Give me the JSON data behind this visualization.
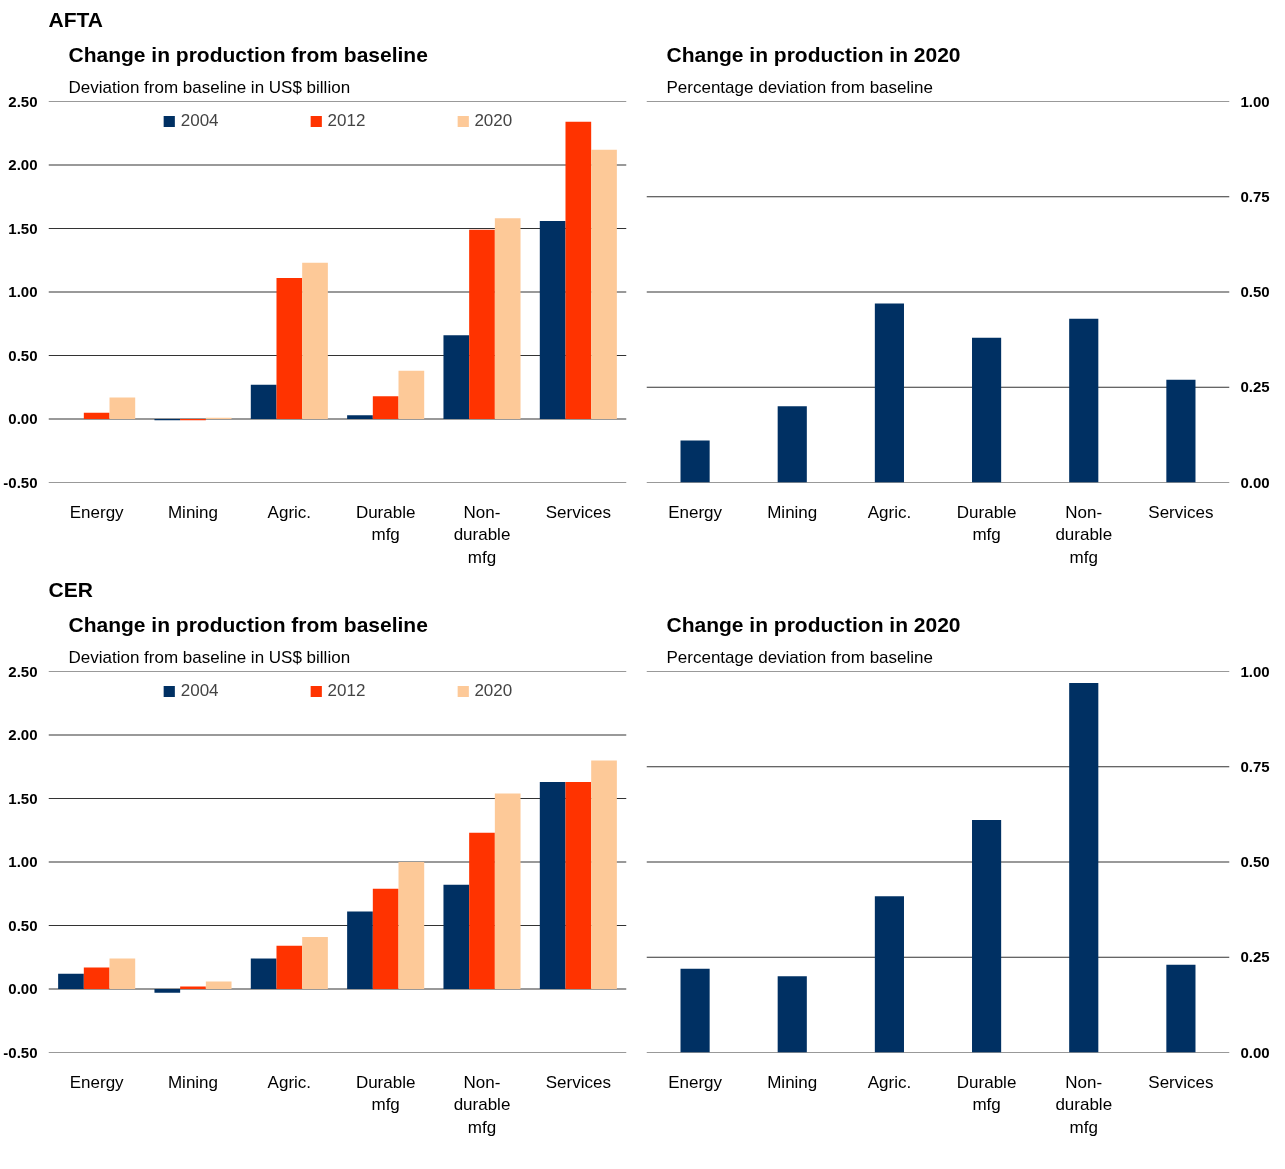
{
  "chart_data": [
    {
      "type": "bar",
      "title": "Change in production from baseline",
      "subtitle": "Deviation from baseline in US$ billion",
      "annotations": [
        "AFTA"
      ],
      "categories": [
        "Energy",
        "Mining",
        "Agric.",
        "Durable mfg",
        "Non-durable mfg",
        "Services"
      ],
      "series": [
        {
          "name": "2004",
          "color": "#003063",
          "values": [
            0.0,
            -0.01,
            0.27,
            0.03,
            0.66,
            1.56
          ]
        },
        {
          "name": "2012",
          "color": "#ff3300",
          "values": [
            0.05,
            -0.01,
            1.11,
            0.18,
            1.49,
            2.34
          ]
        },
        {
          "name": "2020",
          "color": "#fdc998",
          "values": [
            0.17,
            0.01,
            1.23,
            0.38,
            1.58,
            2.12
          ]
        }
      ],
      "ylim": [
        -0.5,
        2.5
      ],
      "yticks": [
        {
          "value": -0.5,
          "label": "-0.50"
        },
        {
          "value": 0,
          "label": "0.00"
        },
        {
          "value": 0.5,
          "label": "0.50"
        },
        {
          "value": 1,
          "label": "1.00"
        },
        {
          "value": 1.5,
          "label": "1.50"
        },
        {
          "value": 2,
          "label": "2.00"
        },
        {
          "value": 2.5,
          "label": "2.50"
        }
      ],
      "grid": "y",
      "legend": "top"
    },
    {
      "type": "bar",
      "title": "Change in production in 2020",
      "subtitle": "Percentage deviation from baseline",
      "categories": [
        "Energy",
        "Mining",
        "Agric.",
        "Durable mfg",
        "Non-durable mfg",
        "Services"
      ],
      "series": [
        {
          "color": "#003063",
          "axis": "y2",
          "values": [
            0.11,
            0.2,
            0.47,
            0.38,
            0.43,
            0.27
          ]
        }
      ],
      "y2lim": [
        0,
        1
      ],
      "y2ticks": [
        {
          "value": 0,
          "label": "0.00"
        },
        {
          "value": 0.25,
          "label": "0.25"
        },
        {
          "value": 0.5,
          "label": "0.50"
        },
        {
          "value": 0.75,
          "label": "0.75"
        },
        {
          "value": 1,
          "label": "1.00"
        }
      ],
      "grid": "y"
    },
    {
      "type": "bar",
      "title": "Change in production from baseline",
      "subtitle": "Deviation from baseline in US$ billion",
      "annotations": [
        "CER"
      ],
      "categories": [
        "Energy",
        "Mining",
        "Agric.",
        "Durable mfg",
        "Non-durable mfg",
        "Services"
      ],
      "series": [
        {
          "name": "2004",
          "color": "#003063",
          "values": [
            0.12,
            -0.03,
            0.24,
            0.61,
            0.82,
            1.63
          ]
        },
        {
          "name": "2012",
          "color": "#ff3300",
          "values": [
            0.17,
            0.02,
            0.34,
            0.79,
            1.23,
            1.63
          ]
        },
        {
          "name": "2020",
          "color": "#fdc998",
          "values": [
            0.24,
            0.06,
            0.41,
            1.0,
            1.54,
            1.8
          ]
        }
      ],
      "ylim": [
        -0.5,
        2.5
      ],
      "yticks": [
        {
          "value": -0.5,
          "label": "-0.50"
        },
        {
          "value": 0,
          "label": "0.00"
        },
        {
          "value": 0.5,
          "label": "0.50"
        },
        {
          "value": 1,
          "label": "1.00"
        },
        {
          "value": 1.5,
          "label": "1.50"
        },
        {
          "value": 2,
          "label": "2.00"
        },
        {
          "value": 2.5,
          "label": "2.50"
        }
      ],
      "grid": "y",
      "legend": "top"
    },
    {
      "type": "bar",
      "title": "Change in production in 2020",
      "subtitle": "Percentage deviation from baseline",
      "categories": [
        "Energy",
        "Mining",
        "Agric.",
        "Durable mfg",
        "Non-durable mfg",
        "Services"
      ],
      "series": [
        {
          "color": "#003063",
          "axis": "y2",
          "values": [
            0.22,
            0.2,
            0.41,
            0.61,
            0.97,
            0.23
          ]
        }
      ],
      "y2lim": [
        0,
        1
      ],
      "y2ticks": [
        {
          "value": 0,
          "label": "0.00"
        },
        {
          "value": 0.25,
          "label": "0.25"
        },
        {
          "value": 0.5,
          "label": "0.50"
        },
        {
          "value": 0.75,
          "label": "0.75"
        },
        {
          "value": 1,
          "label": "1.00"
        }
      ],
      "grid": "y"
    }
  ]
}
